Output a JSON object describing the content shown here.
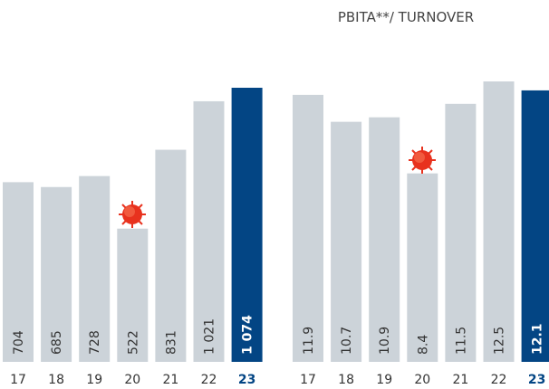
{
  "chart_data": [
    {
      "type": "bar",
      "categories": [
        "17",
        "18",
        "19",
        "20",
        "21",
        "22",
        "23"
      ],
      "values": [
        704,
        685,
        728,
        522,
        831,
        1021,
        1074
      ],
      "value_labels": [
        "704",
        "685",
        "728",
        "522",
        "831",
        "1 021",
        "1 074"
      ],
      "colors": [
        "#ccd3d9",
        "#ccd3d9",
        "#ccd3d9",
        "#ccd3d9",
        "#ccd3d9",
        "#ccd3d9",
        "#034584"
      ]
    },
    {
      "type": "bar",
      "title": "PBITA**/ TURNOVER",
      "categories": [
        "17",
        "18",
        "19",
        "20",
        "21",
        "22",
        "23"
      ],
      "values": [
        11.9,
        10.7,
        10.9,
        8.4,
        11.5,
        12.5,
        12.1
      ],
      "colors": [
        "#ccd3d9",
        "#ccd3d9",
        "#ccd3d9",
        "#ccd3d9",
        "#ccd3d9",
        "#ccd3d9",
        "#034584"
      ]
    }
  ]
}
